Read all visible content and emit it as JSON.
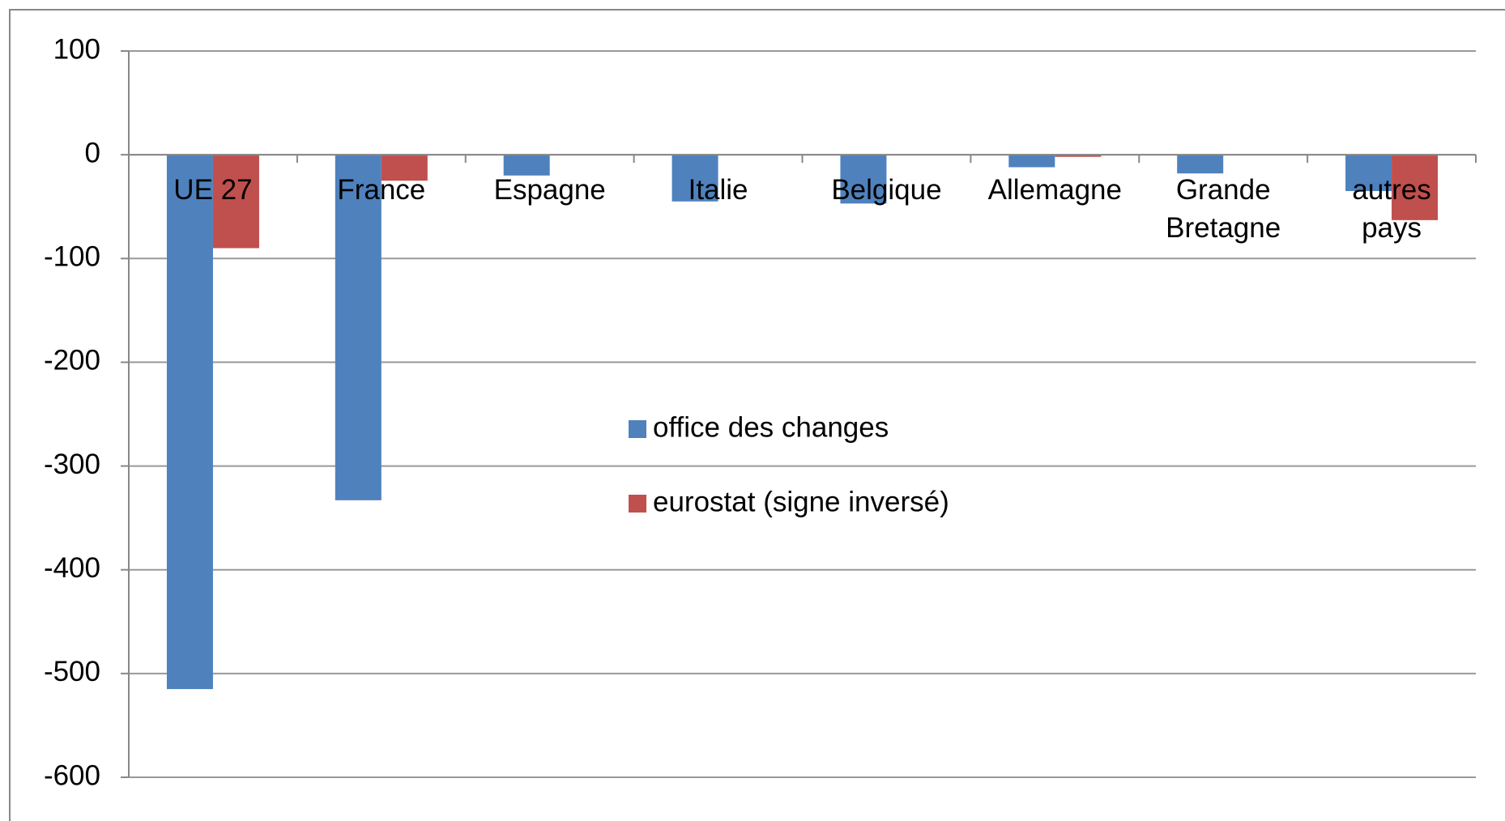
{
  "chart_data": {
    "type": "bar",
    "categories": [
      "UE 27",
      "France",
      "Espagne",
      "Italie",
      "Belgique",
      "Allemagne",
      "Grande\nBretagne",
      "autres\npays"
    ],
    "series": [
      {
        "name": "office des changes",
        "color": "#4f81bd",
        "values": [
          -515,
          -333,
          -20,
          -45,
          -47,
          -12,
          -18,
          -35
        ]
      },
      {
        "name": "eurostat (signe inversé)",
        "color": "#c0504d",
        "values": [
          -90,
          -25,
          0,
          0,
          0,
          -2,
          0,
          -63
        ]
      }
    ],
    "ylim": [
      -600,
      100
    ],
    "yticks": [
      -600,
      -500,
      -400,
      -300,
      -200,
      -100,
      0,
      100
    ],
    "grid": true
  }
}
